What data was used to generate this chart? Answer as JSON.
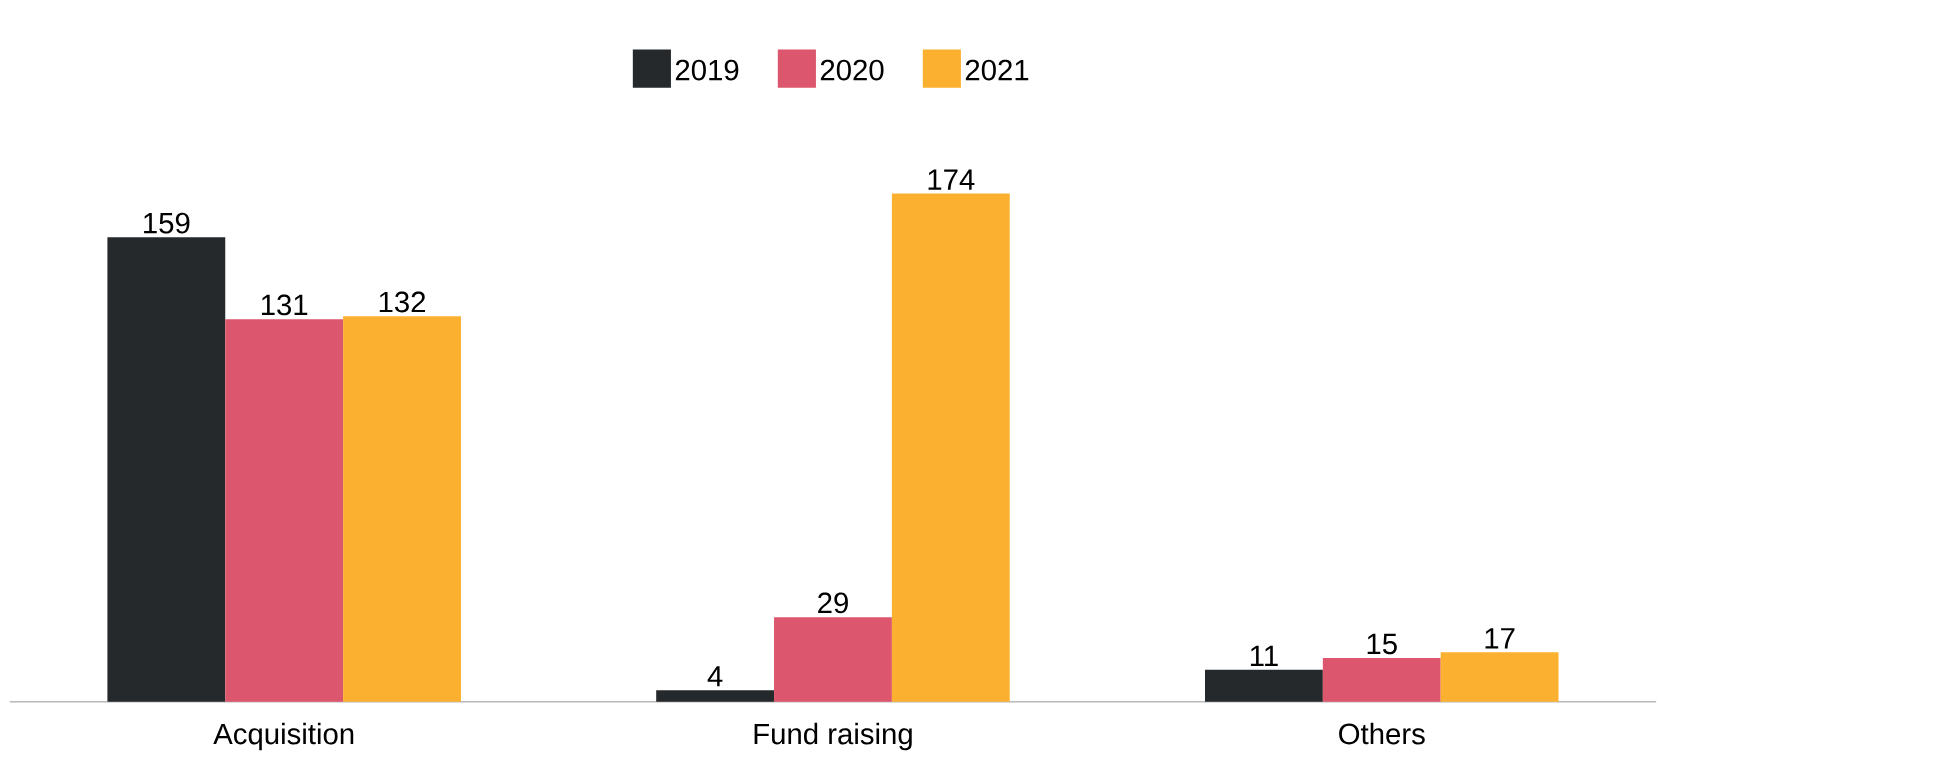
{
  "chart_data": {
    "type": "bar",
    "categories": [
      "Acquisition",
      "Fund raising",
      "Others"
    ],
    "series": [
      {
        "name": "2019",
        "color": "#25292b",
        "values": [
          159,
          4,
          11
        ]
      },
      {
        "name": "2020",
        "color": "#dc566d",
        "values": [
          131,
          29,
          15
        ]
      },
      {
        "name": "2021",
        "color": "#fbb12f",
        "values": [
          132,
          174,
          17
        ]
      }
    ],
    "data_labels": true,
    "legend": "top"
  }
}
